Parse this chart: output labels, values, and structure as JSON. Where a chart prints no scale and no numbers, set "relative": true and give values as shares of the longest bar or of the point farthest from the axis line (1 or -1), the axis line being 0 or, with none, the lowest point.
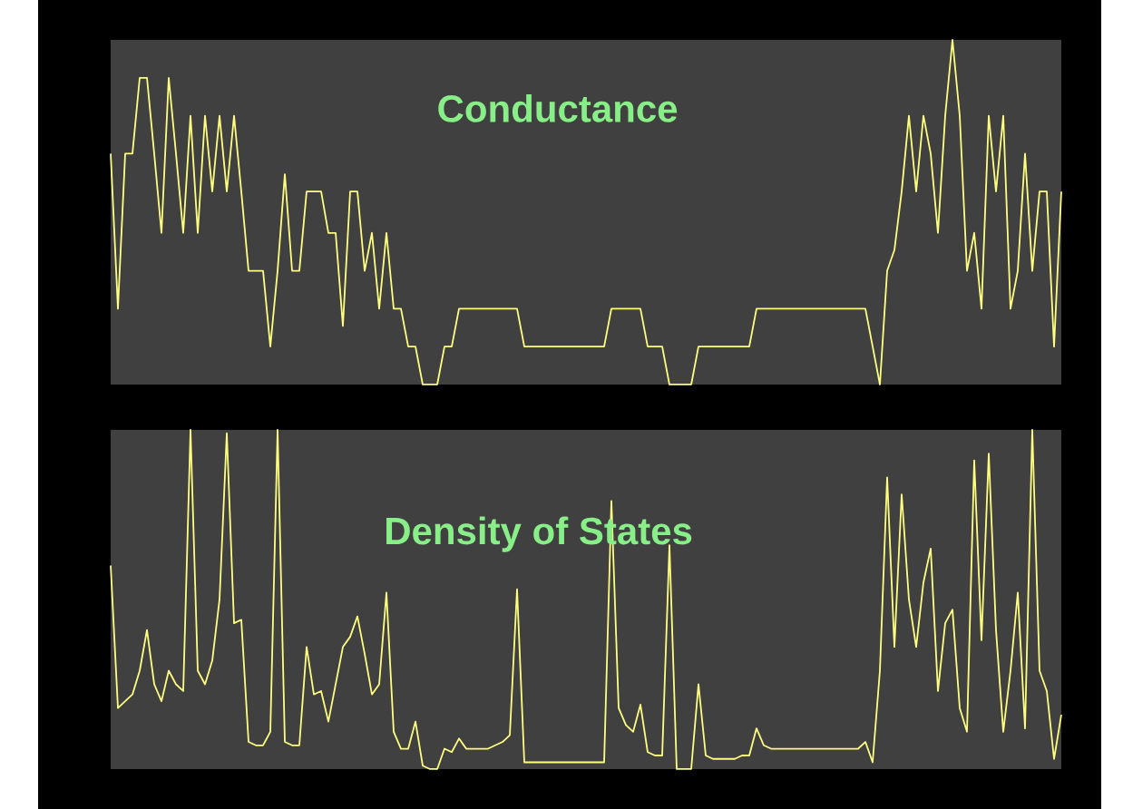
{
  "chart_data": [
    {
      "type": "line",
      "title": "Conductance",
      "relative": true,
      "categories": [
        null,
        null,
        null,
        null,
        null,
        null,
        null,
        null,
        null,
        null,
        null,
        null,
        null,
        null,
        null,
        null,
        null,
        null,
        null,
        null,
        null,
        null,
        null,
        null,
        null,
        null,
        null,
        null,
        null,
        null,
        null,
        null,
        null,
        null,
        null,
        null,
        null,
        null,
        null,
        null,
        null,
        null,
        null,
        null,
        null,
        null,
        null,
        null,
        null,
        null,
        null,
        null,
        null,
        null,
        null,
        null,
        null,
        null,
        null,
        null,
        null,
        null,
        null,
        null,
        null,
        null,
        null,
        null,
        null,
        null,
        null,
        null,
        null,
        null,
        null,
        null,
        null,
        null,
        null,
        null,
        null,
        null,
        null,
        null,
        null,
        null,
        null,
        null,
        null,
        null,
        null,
        null,
        null,
        null,
        null,
        null,
        null,
        null,
        null,
        null,
        null,
        null,
        null,
        null,
        null,
        null,
        null,
        null,
        null,
        null,
        null,
        null,
        null,
        null,
        null,
        null,
        null,
        null,
        null,
        null,
        null,
        null,
        null,
        null,
        null,
        null,
        null,
        null,
        null,
        null,
        null,
        null
      ],
      "series": [
        {
          "color": "#ffff80",
          "values": [
            0.67,
            0.22,
            0.67,
            0.67,
            0.89,
            0.89,
            0.67,
            0.44,
            0.89,
            0.67,
            0.44,
            0.78,
            0.44,
            0.78,
            0.56,
            0.78,
            0.56,
            0.78,
            0.56,
            0.33,
            0.33,
            0.33,
            0.11,
            0.33,
            0.61,
            0.33,
            0.33,
            0.56,
            0.56,
            0.56,
            0.44,
            0.44,
            0.17,
            0.56,
            0.56,
            0.33,
            0.44,
            0.22,
            0.44,
            0.22,
            0.22,
            0.11,
            0.11,
            0,
            0,
            0,
            0.11,
            0.11,
            0.22,
            0.22,
            0.22,
            0.22,
            0.22,
            0.22,
            0.22,
            0.22,
            0.22,
            0.11,
            0.11,
            0.11,
            0.11,
            0.11,
            0.11,
            0.11,
            0.11,
            0.11,
            0.11,
            0.11,
            0.11,
            0.22,
            0.22,
            0.22,
            0.22,
            0.22,
            0.11,
            0.11,
            0.11,
            0,
            0,
            0,
            0,
            0.11,
            0.11,
            0.11,
            0.11,
            0.11,
            0.11,
            0.11,
            0.11,
            0.22,
            0.22,
            0.22,
            0.22,
            0.22,
            0.22,
            0.22,
            0.22,
            0.22,
            0.22,
            0.22,
            0.22,
            0.22,
            0.22,
            0.22,
            0.22,
            0.11,
            0,
            0.33,
            0.39,
            0.56,
            0.78,
            0.56,
            0.78,
            0.67,
            0.44,
            0.78,
            1,
            0.78,
            0.33,
            0.44,
            0.22,
            0.78,
            0.56,
            0.78,
            0.22,
            0.33,
            0.67,
            0.33,
            0.56,
            0.56,
            0.11,
            0.56
          ]
        }
      ]
    },
    {
      "type": "line",
      "title": "Density of States",
      "relative": true,
      "categories": [
        null,
        null,
        null,
        null,
        null,
        null,
        null,
        null,
        null,
        null,
        null,
        null,
        null,
        null,
        null,
        null,
        null,
        null,
        null,
        null,
        null,
        null,
        null,
        null,
        null,
        null,
        null,
        null,
        null,
        null,
        null,
        null,
        null,
        null,
        null,
        null,
        null,
        null,
        null,
        null,
        null,
        null,
        null,
        null,
        null,
        null,
        null,
        null,
        null,
        null,
        null,
        null,
        null,
        null,
        null,
        null,
        null,
        null,
        null,
        null,
        null,
        null,
        null,
        null,
        null,
        null,
        null,
        null,
        null,
        null,
        null,
        null,
        null,
        null,
        null,
        null,
        null,
        null,
        null,
        null,
        null,
        null,
        null,
        null,
        null,
        null,
        null,
        null,
        null,
        null,
        null,
        null,
        null,
        null,
        null,
        null,
        null,
        null,
        null,
        null,
        null,
        null,
        null,
        null,
        null,
        null,
        null,
        null,
        null,
        null,
        null,
        null,
        null,
        null,
        null,
        null,
        null,
        null,
        null,
        null,
        null,
        null,
        null,
        null,
        null,
        null,
        null,
        null,
        null,
        null,
        null,
        null
      ],
      "series": [
        {
          "color": "#ffff80",
          "values": [
            0.6,
            0.18,
            0.2,
            0.22,
            0.29,
            0.41,
            0.25,
            0.2,
            0.29,
            0.25,
            0.23,
            1,
            0.29,
            0.25,
            0.32,
            0.5,
            0.99,
            0.43,
            0.44,
            0.08,
            0.07,
            0.07,
            0.11,
            1,
            0.08,
            0.07,
            0.07,
            0.36,
            0.22,
            0.23,
            0.14,
            0.25,
            0.36,
            0.39,
            0.45,
            0.34,
            0.22,
            0.25,
            0.52,
            0.11,
            0.06,
            0.06,
            0.14,
            0.01,
            0,
            0,
            0.06,
            0.05,
            0.09,
            0.06,
            0.06,
            0.06,
            0.06,
            0.07,
            0.08,
            0.1,
            0.53,
            0.02,
            0.02,
            0.02,
            0.02,
            0.02,
            0.02,
            0.02,
            0.02,
            0.02,
            0.02,
            0.02,
            0.02,
            0.79,
            0.18,
            0.13,
            0.11,
            0.19,
            0.05,
            0.04,
            0.04,
            0.66,
            0,
            0,
            0,
            0.25,
            0.04,
            0.03,
            0.03,
            0.03,
            0.03,
            0.04,
            0.04,
            0.12,
            0.07,
            0.06,
            0.06,
            0.06,
            0.06,
            0.06,
            0.06,
            0.06,
            0.06,
            0.06,
            0.06,
            0.06,
            0.06,
            0.06,
            0.08,
            0.02,
            0.29,
            0.86,
            0.36,
            0.81,
            0.5,
            0.36,
            0.55,
            0.65,
            0.23,
            0.43,
            0.47,
            0.18,
            0.11,
            0.91,
            0.38,
            0.93,
            0.41,
            0.11,
            0.29,
            0.52,
            0.12,
            1,
            0.29,
            0.23,
            0.03,
            0.16
          ]
        }
      ]
    }
  ]
}
